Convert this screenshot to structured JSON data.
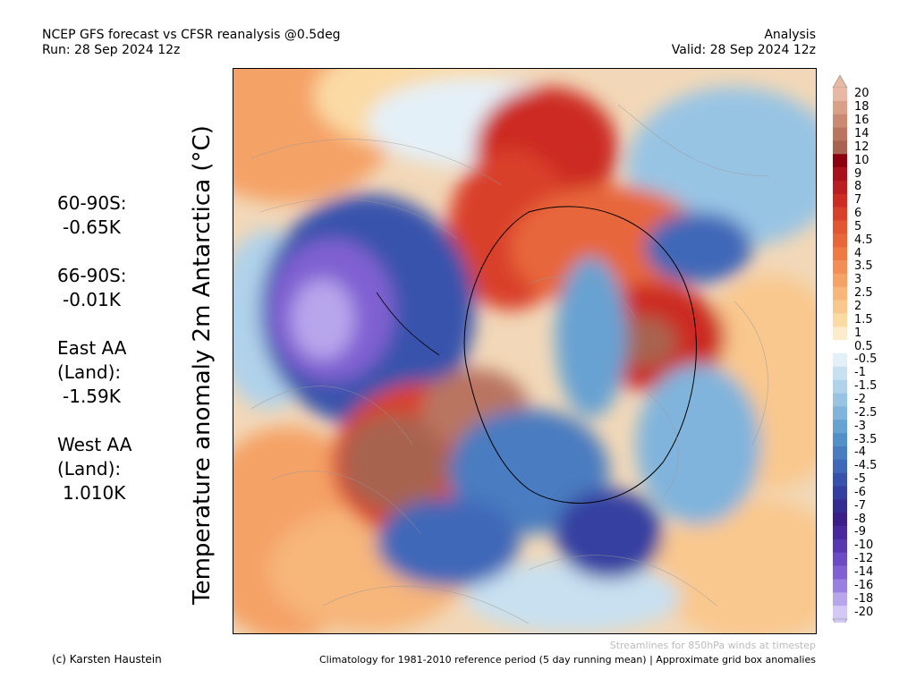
{
  "header": {
    "title_line1": "NCEP GFS forecast vs CFSR reanalysis @0.5deg",
    "title_line2": "Run: 28 Sep 2024 12z",
    "right_line1": "Analysis",
    "right_line2": "Valid: 28 Sep 2024 12z"
  },
  "stats": [
    {
      "name": "60-90S:",
      "value": "-0.65K"
    },
    {
      "name": "66-90S:",
      "value": "-0.01K"
    },
    {
      "name": "East AA\n(Land):",
      "value": "-1.59K"
    },
    {
      "name": "West AA\n(Land):",
      "value": "1.010K"
    }
  ],
  "map": {
    "variable_label": "Temperature anomaly 2m Antarctica (°C)"
  },
  "colorbar": {
    "levels": [
      "20",
      "18",
      "16",
      "14",
      "12",
      "10",
      "9",
      "8",
      "7",
      "6",
      "5",
      "4.5",
      "4",
      "3.5",
      "3",
      "2.5",
      "2",
      "1.5",
      "1",
      "0.5",
      "-0.5",
      "-1",
      "-1.5",
      "-2",
      "-2.5",
      "-3",
      "-3.5",
      "-4",
      "-4.5",
      "-5",
      "-6",
      "-7",
      "-8",
      "-9",
      "-10",
      "-12",
      "-14",
      "-16",
      "-18",
      "-20"
    ],
    "colors": [
      "#e8b8a4",
      "#d9a088",
      "#c98a70",
      "#b97560",
      "#a86450",
      "#8c0010",
      "#a8101a",
      "#bb1e20",
      "#cc2c24",
      "#d9402c",
      "#e25634",
      "#e8663a",
      "#ee7a46",
      "#f28e56",
      "#f5a266",
      "#f7b67a",
      "#f9c88e",
      "#fbdaa4",
      "#fdeccb",
      "#ffffff",
      "#e4f0f8",
      "#c8e0f0",
      "#b0d2ea",
      "#98c4e4",
      "#80b4dc",
      "#68a2d2",
      "#5490c8",
      "#4a7cc0",
      "#4068b8",
      "#3852ac",
      "#3440a0",
      "#342c90",
      "#3c1e88",
      "#48289c",
      "#5838b0",
      "#6c4cc4",
      "#8060d2",
      "#9a80e0",
      "#b8a6ec",
      "#d4c8f6"
    ]
  },
  "footer": {
    "streamlines_note": "Streamlines for 850hPa winds at timestep",
    "copyright": "(c) Karsten Haustein",
    "climatology": "Climatology for 1981-2010 reference period (5 day running mean) | Approximate grid box anomalies"
  }
}
